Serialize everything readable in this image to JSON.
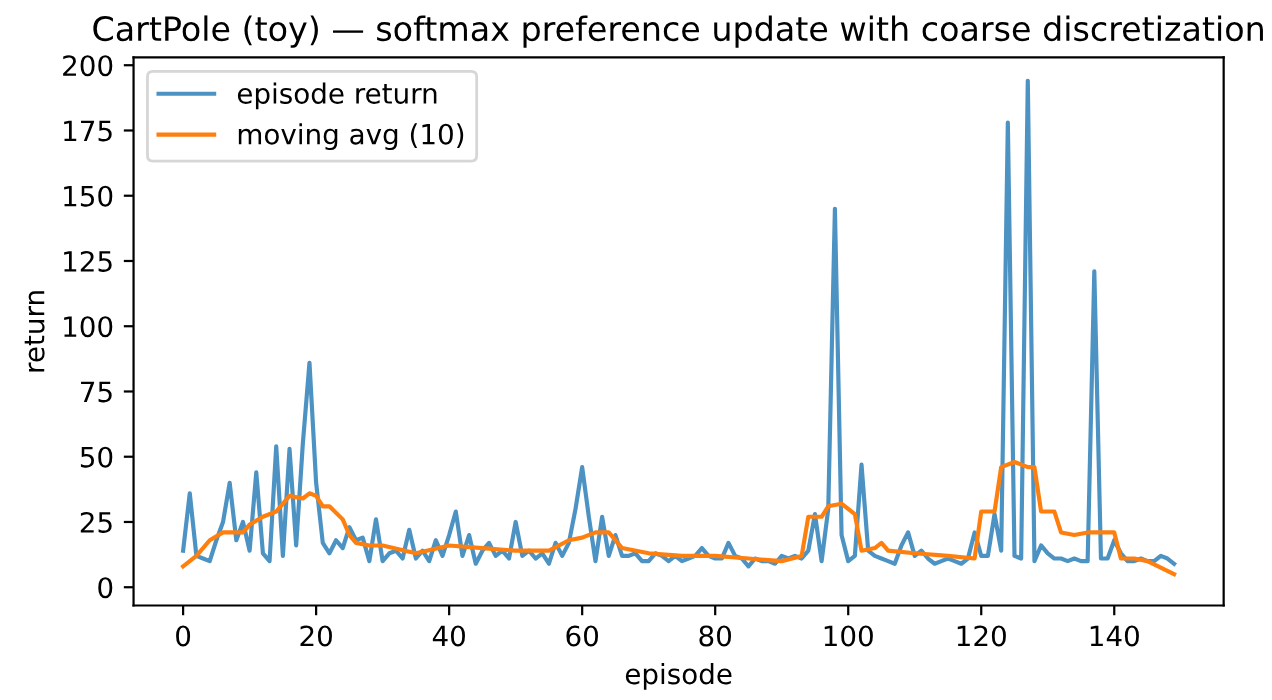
{
  "chart_data": {
    "type": "line",
    "title": "CartPole (toy) — softmax preference update with coarse discretization",
    "xlabel": "episode",
    "ylabel": "return",
    "xlim": [
      -7.45,
      156.45
    ],
    "ylim": [
      -7,
      203
    ],
    "xticks": [
      0,
      20,
      40,
      60,
      80,
      100,
      120,
      140
    ],
    "yticks": [
      0,
      25,
      50,
      75,
      100,
      125,
      150,
      175,
      200
    ],
    "grid": false,
    "legend": "top left",
    "line_style": "solid",
    "marker": "none",
    "series": [
      {
        "name": "episode return",
        "color": "#1f77b4",
        "x": [
          0,
          1,
          2,
          3,
          4,
          5,
          6,
          7,
          8,
          9,
          10,
          11,
          12,
          13,
          14,
          15,
          16,
          17,
          18,
          19,
          20,
          21,
          22,
          23,
          24,
          25,
          26,
          27,
          28,
          29,
          30,
          31,
          32,
          33,
          34,
          35,
          36,
          37,
          38,
          39,
          40,
          41,
          42,
          43,
          44,
          45,
          46,
          47,
          48,
          49,
          50,
          51,
          52,
          53,
          54,
          55,
          56,
          57,
          58,
          59,
          60,
          61,
          62,
          63,
          64,
          65,
          66,
          67,
          68,
          69,
          70,
          71,
          72,
          73,
          74,
          75,
          76,
          77,
          78,
          79,
          80,
          81,
          82,
          83,
          84,
          85,
          86,
          87,
          88,
          89,
          90,
          91,
          92,
          93,
          94,
          95,
          96,
          97,
          98,
          99,
          100,
          101,
          102,
          103,
          104,
          105,
          106,
          107,
          108,
          109,
          110,
          111,
          112,
          113,
          114,
          115,
          116,
          117,
          118,
          119,
          120,
          121,
          122,
          123,
          124,
          125,
          126,
          127,
          128,
          129,
          130,
          131,
          132,
          133,
          134,
          135,
          136,
          137,
          138,
          139,
          140,
          141,
          142,
          143,
          144,
          145,
          146,
          147,
          148,
          149
        ],
        "values": [
          14,
          36,
          12,
          11,
          10,
          18,
          25,
          40,
          18,
          25,
          14,
          44,
          13,
          10,
          54,
          12,
          53,
          16,
          55,
          86,
          40,
          17,
          13,
          18,
          15,
          23,
          18,
          19,
          10,
          26,
          10,
          13,
          14,
          11,
          22,
          11,
          14,
          10,
          18,
          12,
          20,
          29,
          12,
          20,
          9,
          14,
          17,
          12,
          14,
          11,
          25,
          12,
          14,
          11,
          13,
          9,
          17,
          12,
          17,
          30,
          46,
          27,
          10,
          27,
          12,
          20,
          12,
          12,
          13,
          10,
          10,
          13,
          12,
          10,
          12,
          10,
          11,
          12,
          15,
          12,
          11,
          11,
          17,
          12,
          11,
          8,
          11,
          10,
          10,
          9,
          12,
          11,
          12,
          11,
          14,
          28,
          10,
          30,
          145,
          20,
          10,
          12,
          47,
          14,
          12,
          11,
          10,
          9,
          16,
          21,
          12,
          14,
          11,
          9,
          10,
          11,
          10,
          9,
          11,
          21,
          12,
          12,
          28,
          14,
          178,
          12,
          11,
          194,
          10,
          16,
          13,
          11,
          11,
          10,
          11,
          10,
          10,
          121,
          11,
          11,
          18,
          13,
          10,
          10,
          11,
          10,
          10,
          12,
          11,
          9
        ]
      },
      {
        "name": "moving avg (10)",
        "color": "#ff7f0e",
        "x": [
          0,
          2,
          4,
          6,
          9,
          10,
          12,
          14,
          16,
          18,
          19,
          20,
          21,
          22,
          24,
          25,
          26,
          28,
          30,
          35,
          40,
          45,
          50,
          55,
          58,
          60,
          62,
          64,
          66,
          70,
          75,
          80,
          85,
          90,
          93,
          94,
          96,
          97,
          99,
          101,
          102,
          104,
          105,
          106,
          110,
          115,
          119,
          120,
          122,
          123,
          125,
          127,
          128,
          129,
          131,
          132,
          134,
          136,
          140,
          141,
          143,
          145,
          149
        ],
        "values": [
          8,
          12,
          18,
          21,
          21,
          24,
          27,
          29,
          35,
          34,
          36,
          35,
          31,
          31,
          26,
          20,
          17,
          16,
          16,
          13,
          16,
          15,
          14,
          14,
          18,
          19,
          21,
          21,
          15,
          13,
          12,
          12,
          11,
          10,
          12,
          27,
          27,
          31,
          32,
          28,
          14,
          15,
          17,
          14,
          13,
          12,
          11,
          29,
          29,
          46,
          48,
          46,
          46,
          29,
          29,
          21,
          20,
          21,
          21,
          11,
          11,
          10,
          5
        ]
      }
    ]
  }
}
